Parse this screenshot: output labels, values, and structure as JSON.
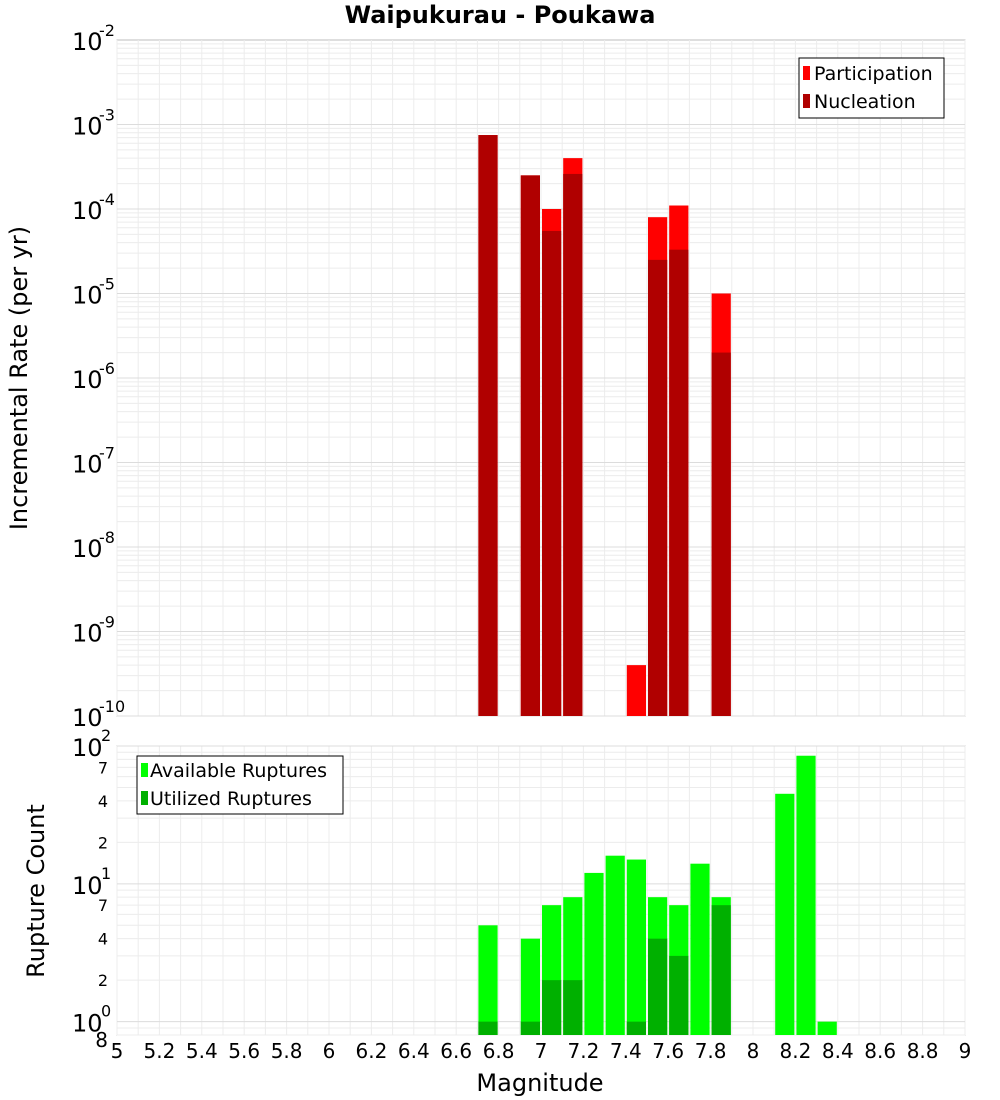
{
  "chart_data": [
    {
      "type": "bar",
      "title": "Waipukurau - Poukawa",
      "xlabel": "",
      "ylabel": "Incremental Rate (per yr)",
      "yscale": "log",
      "ylim": [
        1e-10,
        0.01
      ],
      "xlim": [
        5,
        9
      ],
      "y_ticks": [
        {
          "base": "10",
          "exp": "-10"
        },
        {
          "base": "10",
          "exp": "-9"
        },
        {
          "base": "10",
          "exp": "-8"
        },
        {
          "base": "10",
          "exp": "-7"
        },
        {
          "base": "10",
          "exp": "-6"
        },
        {
          "base": "10",
          "exp": "-5"
        },
        {
          "base": "10",
          "exp": "-4"
        },
        {
          "base": "10",
          "exp": "-3"
        },
        {
          "base": "10",
          "exp": "-2"
        }
      ],
      "grid": true,
      "legend_position": "top-right",
      "x": [
        6.75,
        6.95,
        7.05,
        7.15,
        7.45,
        7.55,
        7.65,
        7.85
      ],
      "series": [
        {
          "name": "Participation",
          "color": "#ff0000",
          "values": [
            0.00075,
            0.00025,
            0.0001,
            0.0004,
            4e-10,
            8e-05,
            0.00011,
            1e-05
          ]
        },
        {
          "name": "Nucleation",
          "color": "#b00000",
          "values": [
            0.00075,
            0.00025,
            5.5e-05,
            0.00026,
            null,
            2.5e-05,
            3.3e-05,
            2e-06
          ]
        }
      ]
    },
    {
      "type": "bar",
      "title": "",
      "xlabel": "Magnitude",
      "ylabel": "Rupture Count",
      "yscale": "log",
      "ylim": [
        0.8,
        100
      ],
      "xlim": [
        5,
        9
      ],
      "x_ticks": [
        "5",
        "5.2",
        "5.4",
        "5.6",
        "5.8",
        "6",
        "6.2",
        "6.4",
        "6.6",
        "6.8",
        "7",
        "7.2",
        "7.4",
        "7.6",
        "7.8",
        "8",
        "8.2",
        "8.4",
        "8.6",
        "8.8",
        "9"
      ],
      "y_ticks": [
        {
          "base": "10",
          "exp": "0"
        },
        {
          "base": "10",
          "exp": "1"
        },
        {
          "base": "10",
          "exp": "2"
        }
      ],
      "y_minor_ticks": [
        "8",
        "2",
        "4",
        "7",
        "2",
        "4",
        "7"
      ],
      "grid": true,
      "legend_position": "top-left",
      "x": [
        6.75,
        6.95,
        7.05,
        7.15,
        7.25,
        7.35,
        7.45,
        7.55,
        7.65,
        7.75,
        7.85,
        8.15,
        8.25,
        8.35
      ],
      "series": [
        {
          "name": "Available Ruptures",
          "color": "#00ff00",
          "values": [
            5,
            4,
            7,
            8,
            12,
            16,
            15,
            8,
            7,
            14,
            8,
            45,
            85,
            1
          ]
        },
        {
          "name": "Utilized Ruptures",
          "color": "#00b000",
          "values": [
            1,
            1,
            2,
            2,
            null,
            null,
            1,
            4,
            3,
            null,
            7,
            null,
            null,
            null
          ]
        }
      ]
    }
  ]
}
